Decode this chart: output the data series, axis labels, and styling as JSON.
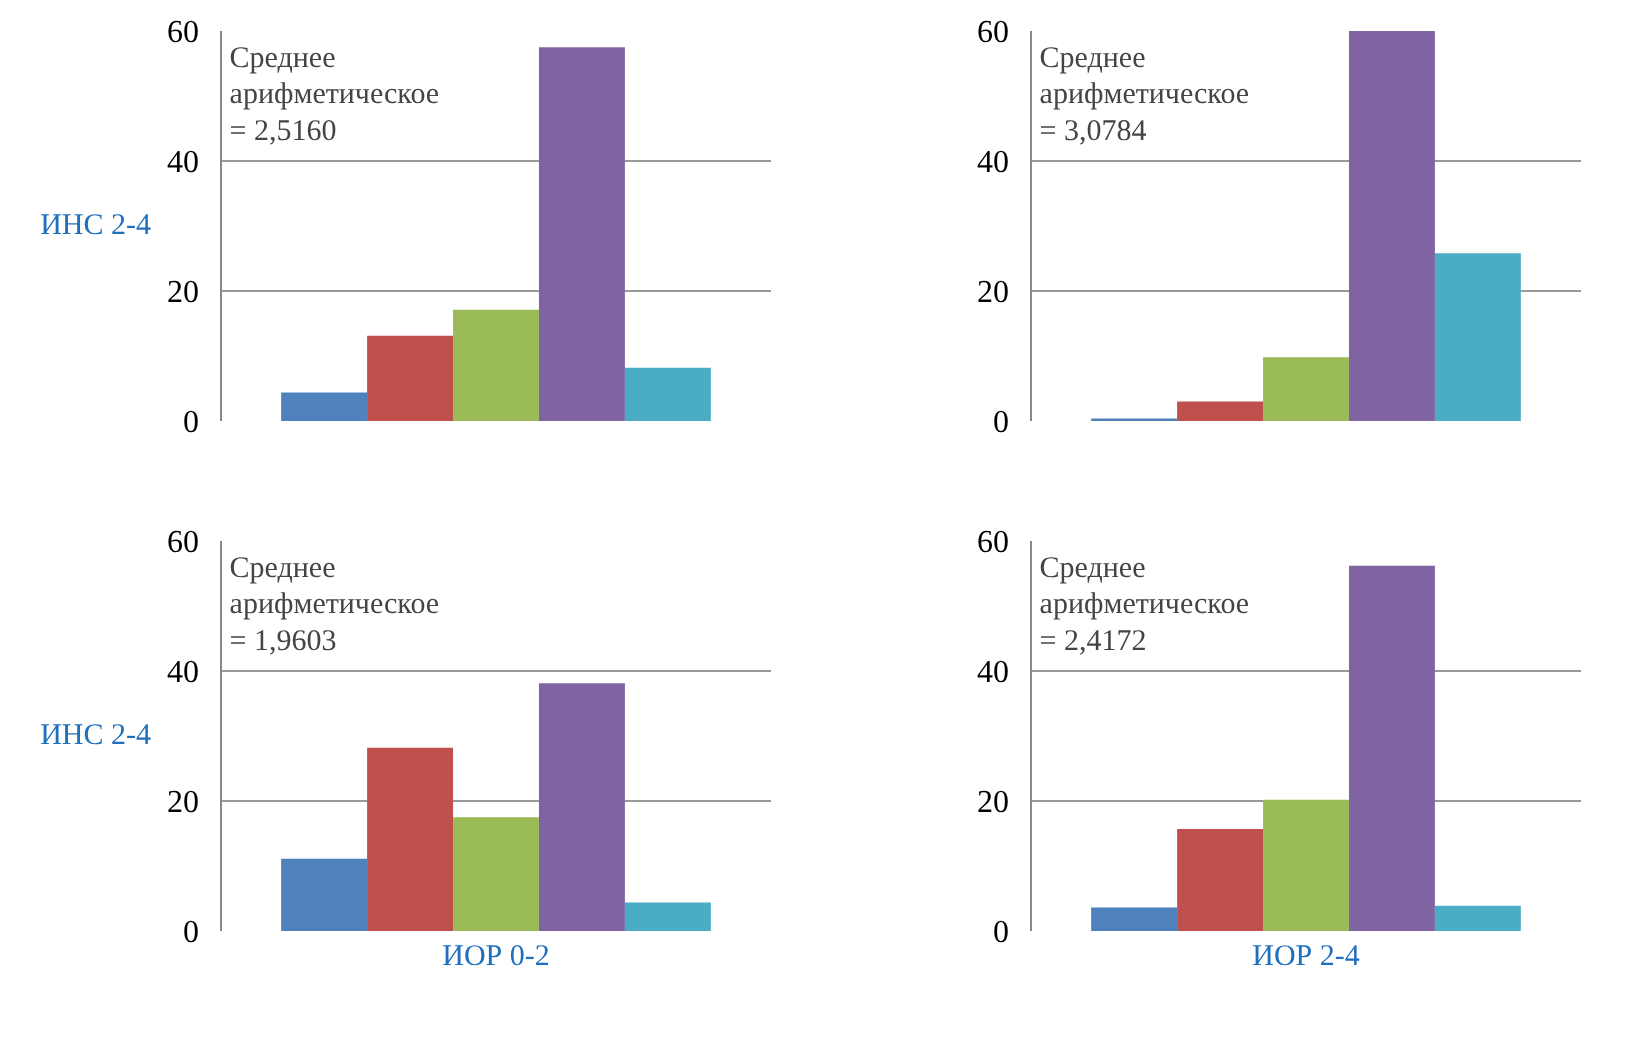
{
  "chart_data": [
    {
      "type": "bar",
      "categories": [
        null,
        null,
        null,
        null,
        null
      ],
      "values": [
        4.4,
        13.1,
        17.1,
        57.5,
        8.2
      ],
      "colors": [
        "#4f81bd",
        "#c0504d",
        "#9bbb59",
        "#8064a2",
        "#4bacc6"
      ],
      "ylim": [
        0,
        60
      ],
      "yticks": [
        0,
        20,
        40,
        60
      ],
      "grid": "y",
      "tick_labels": "y",
      "ylabel": "ИНС 2-4",
      "annotations": [
        "Среднее\nарифметическое\n= 2,5160"
      ]
    },
    {
      "type": "bar",
      "categories": [
        null,
        null,
        null,
        null,
        null
      ],
      "values": [
        0.4,
        3,
        9.8,
        60,
        25.8
      ],
      "colors": [
        "#4f81bd",
        "#c0504d",
        "#9bbb59",
        "#8064a2",
        "#4bacc6"
      ],
      "ylim": [
        0,
        60
      ],
      "yticks": [
        0,
        20,
        40,
        60
      ],
      "grid": "y",
      "tick_labels": "y",
      "annotations": [
        "Среднее\nарифметическое\n= 3,0784"
      ]
    },
    {
      "type": "bar",
      "categories": [
        null,
        null,
        null,
        null,
        null
      ],
      "values": [
        11.1,
        28.2,
        17.5,
        38.1,
        4.4
      ],
      "colors": [
        "#4f81bd",
        "#c0504d",
        "#9bbb59",
        "#8064a2",
        "#4bacc6"
      ],
      "ylim": [
        0,
        60
      ],
      "yticks": [
        0,
        20,
        40,
        60
      ],
      "grid": "y",
      "tick_labels": "y",
      "ylabel": "ИНС 2-4",
      "xlabel": "ИОР 0-2",
      "annotations": [
        "Среднее\nарифметическое\n= 1,9603"
      ]
    },
    {
      "type": "bar",
      "categories": [
        null,
        null,
        null,
        null,
        null
      ],
      "values": [
        3.6,
        15.7,
        20.2,
        56.2,
        3.9
      ],
      "colors": [
        "#4f81bd",
        "#c0504d",
        "#9bbb59",
        "#8064a2",
        "#4bacc6"
      ],
      "ylim": [
        0,
        60
      ],
      "yticks": [
        0,
        20,
        40,
        60
      ],
      "grid": "y",
      "tick_labels": "y",
      "xlabel": "ИОР 2-4",
      "annotations": [
        "Среднее\nарифметическое\n= 2,4172"
      ]
    }
  ]
}
